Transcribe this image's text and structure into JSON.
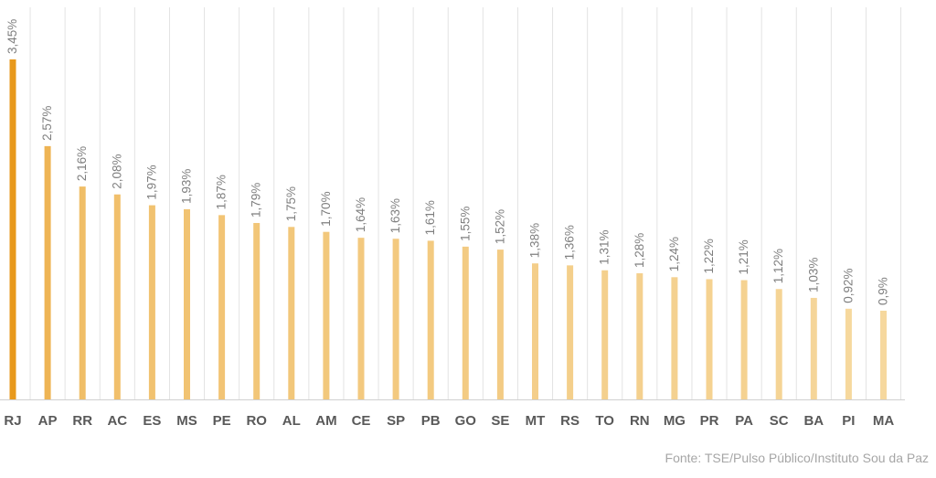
{
  "chart_data": {
    "type": "bar",
    "categories": [
      "RJ",
      "AP",
      "RR",
      "AC",
      "ES",
      "MS",
      "PE",
      "RO",
      "AL",
      "AM",
      "CE",
      "SP",
      "PB",
      "GO",
      "SE",
      "MT",
      "RS",
      "TO",
      "RN",
      "MG",
      "PR",
      "PA",
      "SC",
      "BA",
      "PI",
      "MA"
    ],
    "values": [
      3.45,
      2.57,
      2.16,
      2.08,
      1.97,
      1.93,
      1.87,
      1.79,
      1.75,
      1.7,
      1.64,
      1.63,
      1.61,
      1.55,
      1.52,
      1.38,
      1.36,
      1.31,
      1.28,
      1.24,
      1.22,
      1.21,
      1.12,
      1.03,
      0.92,
      0.9
    ],
    "data_labels": [
      "3,45%",
      "2,57%",
      "2,16%",
      "2,08%",
      "1,97%",
      "1,93%",
      "1,87%",
      "1,79%",
      "1,75%",
      "1,70%",
      "1,64%",
      "1,63%",
      "1,61%",
      "1,55%",
      "1,52%",
      "1,38%",
      "1,36%",
      "1,31%",
      "1,28%",
      "1,24%",
      "1,22%",
      "1,21%",
      "1,12%",
      "1,03%",
      "0,92%",
      "0,9%"
    ],
    "title": "",
    "xlabel": "",
    "ylabel": "",
    "ylim": [
      0,
      3.45
    ],
    "grid": "vertical gridlines between categories",
    "colors": {
      "bar_dark": "#e8991c",
      "bar_light": "#f6d89e",
      "gridline": "#e3e3e3",
      "axis": "#d0d0d0"
    }
  },
  "source_note": "Fonte: TSE/Pulso Público/Instituto Sou da Paz"
}
